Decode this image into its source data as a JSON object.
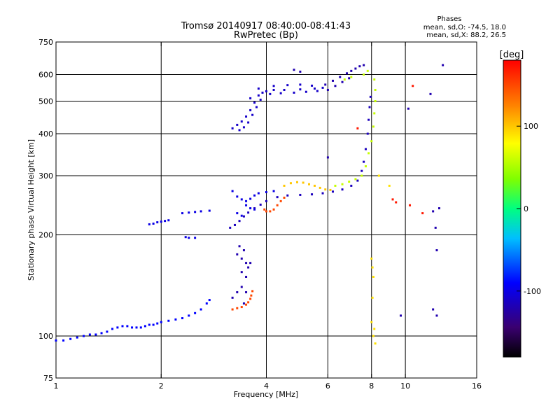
{
  "chart_data": {
    "type": "scatter",
    "title": "Tromsø 20140917 08:40:00-08:41:43",
    "subtitle": "RwPretec (Bp)",
    "xlabel": "Frequency [MHz]",
    "ylabel": "Stationary phase Virtual Height [km]",
    "x_scale": "log",
    "y_scale": "log",
    "xlim": [
      1,
      16
    ],
    "ylim": [
      75,
      750
    ],
    "x_ticks": [
      1,
      2,
      4,
      6,
      8,
      10,
      16
    ],
    "y_ticks": [
      75,
      100,
      200,
      300,
      400,
      500,
      600,
      750
    ],
    "x_gridlines": [
      2,
      4,
      6,
      8,
      10
    ],
    "y_gridlines": [
      100,
      200,
      300,
      400,
      500,
      600
    ],
    "grid": true,
    "phase_info": {
      "heading": "Phases",
      "line1": "mean, sd,O: -74.5, 18.0",
      "line2": "mean, sd,X:  88.2, 26.5"
    },
    "colorbar": {
      "label": "[deg]",
      "range": [
        -180,
        180
      ],
      "ticks": [
        100,
        0,
        -100
      ],
      "colormap": "rainbow"
    },
    "series": [
      {
        "phase": -90,
        "points": [
          [
            1.0,
            97
          ],
          [
            1.05,
            97
          ],
          [
            1.1,
            98
          ],
          [
            1.15,
            99
          ],
          [
            1.2,
            100
          ],
          [
            1.25,
            101
          ],
          [
            1.3,
            101
          ],
          [
            1.35,
            102
          ],
          [
            1.4,
            103
          ],
          [
            1.45,
            105
          ],
          [
            1.5,
            106
          ],
          [
            1.55,
            107
          ],
          [
            1.6,
            107
          ],
          [
            1.65,
            106
          ],
          [
            1.7,
            106
          ],
          [
            1.75,
            106
          ],
          [
            1.8,
            107
          ],
          [
            1.85,
            108
          ],
          [
            1.9,
            108
          ],
          [
            1.95,
            109
          ],
          [
            2.0,
            110
          ],
          [
            2.1,
            111
          ],
          [
            2.2,
            112
          ],
          [
            2.3,
            113
          ],
          [
            2.4,
            115
          ],
          [
            2.5,
            117
          ],
          [
            2.6,
            120
          ],
          [
            2.7,
            125
          ],
          [
            2.75,
            128
          ]
        ]
      },
      {
        "phase": -100,
        "points": [
          [
            1.85,
            215
          ],
          [
            1.9,
            216
          ],
          [
            1.95,
            218
          ],
          [
            2.0,
            219
          ],
          [
            2.05,
            220
          ],
          [
            2.1,
            221
          ],
          [
            2.35,
            197
          ],
          [
            2.4,
            196
          ],
          [
            2.5,
            196
          ],
          [
            2.3,
            232
          ],
          [
            2.4,
            233
          ],
          [
            2.5,
            234
          ],
          [
            2.6,
            235
          ],
          [
            2.75,
            236
          ]
        ]
      },
      {
        "phase": -115,
        "points": [
          [
            3.15,
            210
          ],
          [
            3.25,
            214
          ],
          [
            3.35,
            220
          ],
          [
            3.45,
            227
          ],
          [
            3.55,
            233
          ],
          [
            3.7,
            240
          ],
          [
            3.85,
            246
          ],
          [
            4.0,
            252
          ],
          [
            4.3,
            259
          ],
          [
            4.6,
            262
          ],
          [
            5.0,
            263
          ],
          [
            5.4,
            264
          ],
          [
            5.8,
            266
          ],
          [
            6.2,
            269
          ],
          [
            6.6,
            273
          ],
          [
            7.0,
            280
          ],
          [
            7.3,
            290
          ],
          [
            7.5,
            310
          ],
          [
            7.6,
            330
          ],
          [
            7.7,
            360
          ],
          [
            7.8,
            400
          ],
          [
            7.85,
            440
          ],
          [
            7.9,
            480
          ],
          [
            7.95,
            515
          ]
        ]
      },
      {
        "phase": -100,
        "points": [
          [
            3.2,
            270
          ],
          [
            3.3,
            260
          ],
          [
            3.4,
            255
          ],
          [
            3.5,
            252
          ],
          [
            3.6,
            256
          ],
          [
            3.7,
            262
          ],
          [
            3.8,
            266
          ],
          [
            4.0,
            268
          ],
          [
            4.2,
            270
          ],
          [
            3.5,
            245
          ],
          [
            3.6,
            240
          ],
          [
            3.7,
            238
          ],
          [
            3.3,
            232
          ],
          [
            3.4,
            228
          ]
        ]
      },
      {
        "phase": -110,
        "points": [
          [
            3.2,
            415
          ],
          [
            3.3,
            425
          ],
          [
            3.4,
            435
          ],
          [
            3.5,
            450
          ],
          [
            3.6,
            470
          ],
          [
            3.7,
            495
          ],
          [
            3.8,
            520
          ],
          [
            3.9,
            530
          ],
          [
            4.0,
            535
          ],
          [
            4.2,
            540
          ],
          [
            4.5,
            540
          ],
          [
            5.0,
            542
          ],
          [
            5.5,
            545
          ],
          [
            5.8,
            548
          ],
          [
            3.35,
            410
          ],
          [
            3.45,
            418
          ],
          [
            3.55,
            432
          ],
          [
            3.65,
            455
          ],
          [
            3.75,
            480
          ],
          [
            3.85,
            505
          ],
          [
            4.1,
            525
          ],
          [
            4.4,
            528
          ],
          [
            4.8,
            530
          ],
          [
            5.2,
            533
          ],
          [
            5.6,
            536
          ],
          [
            3.6,
            510
          ],
          [
            3.8,
            545
          ],
          [
            4.2,
            555
          ],
          [
            4.6,
            558
          ],
          [
            5.0,
            560
          ],
          [
            5.4,
            556
          ]
        ]
      },
      {
        "phase": -120,
        "points": [
          [
            5.9,
            560
          ],
          [
            6.2,
            575
          ],
          [
            6.5,
            590
          ],
          [
            6.8,
            605
          ],
          [
            7.0,
            615
          ],
          [
            7.2,
            625
          ],
          [
            7.4,
            635
          ],
          [
            7.6,
            640
          ],
          [
            6.0,
            540
          ],
          [
            6.3,
            555
          ],
          [
            6.6,
            570
          ],
          [
            6.9,
            585
          ],
          [
            4.8,
            620
          ],
          [
            5.0,
            612
          ]
        ]
      },
      {
        "phase": -120,
        "points": [
          [
            3.3,
            175
          ],
          [
            3.4,
            170
          ],
          [
            3.5,
            165
          ],
          [
            3.55,
            160
          ],
          [
            3.6,
            165
          ],
          [
            3.35,
            185
          ],
          [
            3.45,
            180
          ],
          [
            3.4,
            155
          ],
          [
            3.5,
            150
          ],
          [
            3.2,
            130
          ],
          [
            3.3,
            135
          ],
          [
            3.4,
            140
          ],
          [
            3.5,
            135
          ],
          [
            3.45,
            125
          ]
        ]
      },
      {
        "phase": 150,
        "points": [
          [
            3.2,
            120
          ],
          [
            3.3,
            121
          ],
          [
            3.4,
            122
          ],
          [
            3.5,
            124
          ],
          [
            3.55,
            126
          ],
          [
            3.6,
            129
          ],
          [
            3.62,
            132
          ],
          [
            3.65,
            136
          ],
          [
            3.95,
            238
          ],
          [
            4.0,
            235
          ],
          [
            4.1,
            235
          ],
          [
            4.2,
            238
          ],
          [
            4.3,
            245
          ],
          [
            4.4,
            252
          ],
          [
            4.5,
            258
          ]
        ]
      },
      {
        "phase": 100,
        "points": [
          [
            4.5,
            280
          ],
          [
            4.7,
            285
          ],
          [
            4.9,
            287
          ],
          [
            5.1,
            286
          ],
          [
            5.3,
            283
          ],
          [
            5.5,
            280
          ],
          [
            5.7,
            276
          ],
          [
            5.9,
            273
          ],
          [
            6.1,
            272
          ]
        ]
      },
      {
        "phase": 60,
        "points": [
          [
            6.3,
            280
          ],
          [
            6.6,
            283
          ],
          [
            6.9,
            288
          ],
          [
            7.2,
            293
          ],
          [
            7.5,
            300
          ],
          [
            7.7,
            320
          ],
          [
            7.85,
            350
          ],
          [
            8.0,
            380
          ],
          [
            8.1,
            420
          ],
          [
            8.15,
            460
          ],
          [
            8.2,
            500
          ],
          [
            8.2,
            540
          ],
          [
            8.15,
            580
          ],
          [
            7.6,
            600
          ],
          [
            7.8,
            615
          ],
          [
            6.7,
            580
          ],
          [
            7.0,
            590
          ]
        ]
      },
      {
        "phase": 90,
        "points": [
          [
            8.0,
            170
          ],
          [
            8.05,
            160
          ],
          [
            8.1,
            150
          ],
          [
            8.0,
            110
          ],
          [
            8.1,
            100
          ],
          [
            8.2,
            95
          ],
          [
            8.15,
            105
          ],
          [
            8.05,
            130
          ],
          [
            8.4,
            300
          ],
          [
            9.0,
            280
          ]
        ]
      },
      {
        "phase": 170,
        "points": [
          [
            7.3,
            415
          ],
          [
            9.2,
            255
          ],
          [
            10.3,
            245
          ],
          [
            11.2,
            232
          ],
          [
            10.5,
            555
          ],
          [
            9.4,
            250
          ]
        ]
      },
      {
        "phase": -120,
        "points": [
          [
            12.0,
            235
          ],
          [
            12.2,
            210
          ],
          [
            12.3,
            180
          ],
          [
            12.5,
            240
          ],
          [
            12.0,
            120
          ],
          [
            12.3,
            115
          ],
          [
            12.8,
            640
          ],
          [
            10.2,
            475
          ],
          [
            11.8,
            525
          ],
          [
            6.0,
            340
          ],
          [
            9.7,
            115
          ]
        ]
      }
    ]
  }
}
